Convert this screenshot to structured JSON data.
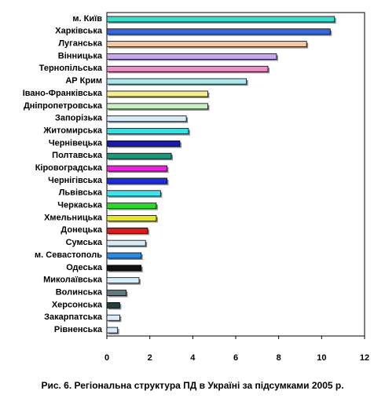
{
  "chart_data": {
    "type": "hbar",
    "caption": "Рис. 6. Регіональна структура ПД в Україні за підсумками 2005 р.",
    "categories": [
      "м. Київ",
      "Харківська",
      "Луганська",
      "Вінницька",
      "Тернопільська",
      "АР Крим",
      "Івано-Франківська",
      "Дніпропетровська",
      "Запорізька",
      "Житомирська",
      "Чернівецька",
      "Полтавська",
      "Кіровоградська",
      "Чернігівська",
      "Львівська",
      "Черкаська",
      "Хмельницька",
      "Донецька",
      "Сумська",
      "м. Севастополь",
      "Одеська",
      "Миколаївська",
      "Волинська",
      "Херсонська",
      "Закарпатська",
      "Рівненська"
    ],
    "values": [
      10.6,
      10.4,
      9.3,
      7.9,
      7.5,
      6.5,
      4.7,
      4.7,
      3.7,
      3.8,
      3.4,
      3.0,
      2.8,
      2.8,
      2.5,
      2.3,
      2.3,
      1.9,
      1.8,
      1.6,
      1.6,
      1.5,
      0.9,
      0.6,
      0.6,
      0.5
    ],
    "colors": [
      "#33e0cc",
      "#3366e0",
      "#f5c8a0",
      "#c8a8f0",
      "#f08cc8",
      "#a8e8f0",
      "#f5f08c",
      "#c8f0c0",
      "#d8ecf8",
      "#33e0e0",
      "#1a1ab0",
      "#1a9a7a",
      "#f020e0",
      "#1a30e0",
      "#33e8f0",
      "#20e020",
      "#e8e820",
      "#e01a1a",
      "#d8ecf8",
      "#2a8ae8",
      "#101010",
      "#d8ecf8",
      "#607880",
      "#204040",
      "#d8ecf8",
      "#d8ecf8"
    ],
    "xlim": [
      0,
      12
    ],
    "xticks": [
      0,
      2,
      4,
      6,
      8,
      10,
      12
    ]
  }
}
